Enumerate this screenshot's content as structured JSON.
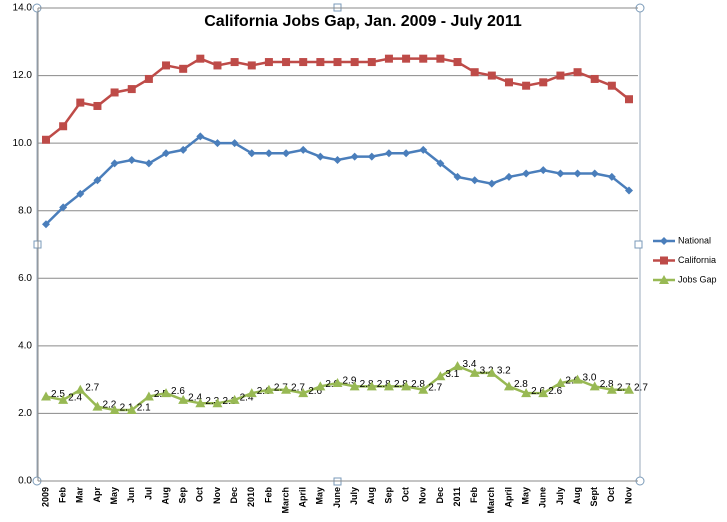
{
  "chart_data": {
    "type": "line",
    "title": "California Jobs Gap, Jan. 2009 - July 2011",
    "categories": [
      "2009",
      "Feb",
      "Mar",
      "Apr",
      "May",
      "Jun",
      "Jul",
      "Aug",
      "Sep",
      "Oct",
      "Nov",
      "Dec",
      "2010",
      "Feb",
      "March",
      "April",
      "May",
      "June",
      "July",
      "Aug",
      "Sep",
      "Oct",
      "Nov",
      "Dec",
      "2011",
      "Feb",
      "March",
      "April",
      "May",
      "June",
      "July",
      "Aug",
      "Sept",
      "Oct",
      "Nov"
    ],
    "series": [
      {
        "name": "National",
        "color": "#4a7ebb",
        "marker": "diamond",
        "values": [
          7.6,
          8.1,
          8.5,
          8.9,
          9.4,
          9.5,
          9.4,
          9.7,
          9.8,
          10.2,
          10.0,
          10.0,
          9.7,
          9.7,
          9.7,
          9.8,
          9.6,
          9.5,
          9.6,
          9.6,
          9.7,
          9.7,
          9.8,
          9.4,
          9.0,
          8.9,
          8.8,
          9.0,
          9.1,
          9.2,
          9.1,
          9.1,
          9.1,
          9.0,
          8.6
        ]
      },
      {
        "name": "California",
        "color": "#be4b48",
        "marker": "square",
        "values": [
          10.1,
          10.5,
          11.2,
          11.1,
          11.5,
          11.6,
          11.9,
          12.3,
          12.2,
          12.5,
          12.3,
          12.4,
          12.3,
          12.4,
          12.4,
          12.4,
          12.4,
          12.4,
          12.4,
          12.4,
          12.5,
          12.5,
          12.5,
          12.5,
          12.4,
          12.1,
          12.0,
          11.8,
          11.7,
          11.8,
          12.0,
          12.1,
          11.9,
          11.7,
          11.3
        ]
      },
      {
        "name": "Jobs Gap",
        "color": "#98b954",
        "marker": "triangle",
        "values": [
          2.5,
          2.4,
          2.7,
          2.2,
          2.1,
          2.1,
          2.5,
          2.6,
          2.4,
          2.3,
          2.3,
          2.4,
          2.6,
          2.7,
          2.7,
          2.6,
          2.8,
          2.9,
          2.8,
          2.8,
          2.8,
          2.8,
          2.7,
          3.1,
          3.4,
          3.2,
          3.2,
          2.8,
          2.6,
          2.6,
          2.9,
          3.0,
          2.8,
          2.7,
          2.7
        ],
        "value_labels": [
          "2.5",
          "2.4",
          "2.7",
          "2.2",
          "2.1",
          "2.1",
          "2.5",
          "2.6",
          "2.4",
          "2.3",
          "2.3",
          "2.4",
          "2.6",
          "2.7",
          "2.7",
          "2.6",
          "2.8",
          "2.9",
          "2.8",
          "2.8",
          "2.8",
          "2.8",
          "2.7",
          "3.1",
          "3.4",
          "3.2",
          "3.2",
          "2.8",
          "2.6",
          "2.6",
          "2.9",
          "3.0",
          "2.8",
          "2.7",
          "2.7"
        ]
      }
    ],
    "ylim": [
      0,
      14
    ],
    "yticks": [
      {
        "value": 0,
        "label": "0.0"
      },
      {
        "value": 2,
        "label": "2.0"
      },
      {
        "value": 4,
        "label": "4.0"
      },
      {
        "value": 6,
        "label": "6.0"
      },
      {
        "value": 8,
        "label": "8.0"
      },
      {
        "value": 10,
        "label": "10.0"
      },
      {
        "value": 12,
        "label": "12.0"
      },
      {
        "value": 14,
        "label": "14.0"
      }
    ],
    "grid": true,
    "legend": "right"
  }
}
